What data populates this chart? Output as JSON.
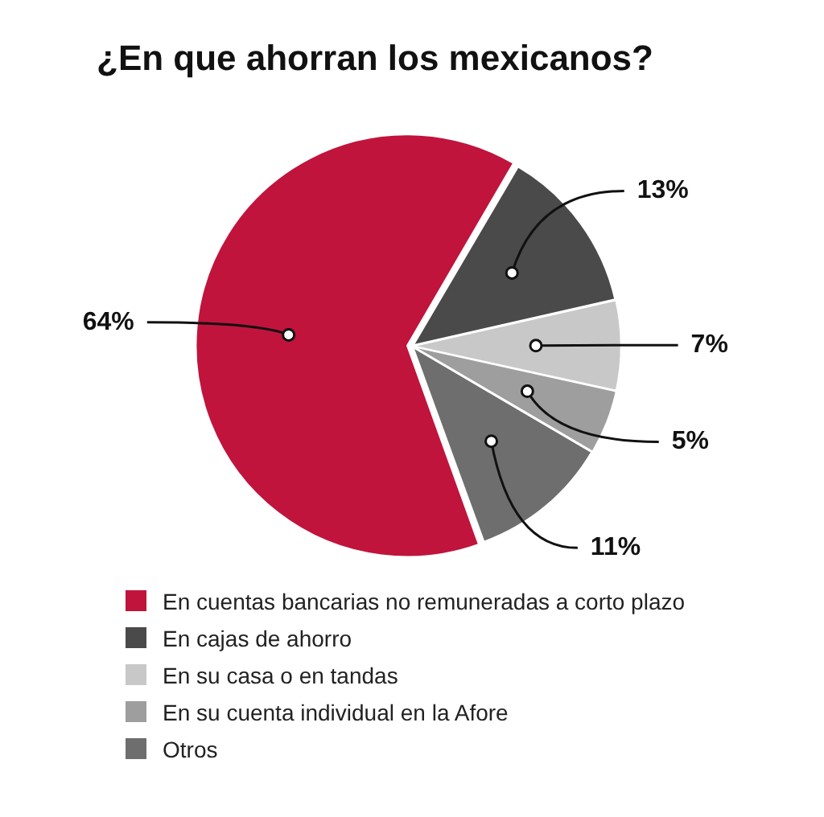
{
  "chart_data": {
    "type": "pie",
    "title": "¿En que ahorran los mexicanos?",
    "categories": [
      "En cuentas bancarias no remuneradas a corto plazo",
      "En cajas de ahorro",
      "En su casa o en tandas",
      "En su cuenta individual en la Afore",
      "Otros"
    ],
    "values": [
      64,
      13,
      7,
      5,
      11
    ],
    "colors": [
      "#c0143c",
      "#4a4a4a",
      "#c8c8c8",
      "#9e9e9e",
      "#6e6e6e"
    ],
    "value_labels": [
      "64%",
      "13%",
      "7%",
      "5%",
      "11%"
    ],
    "legend": "bottom"
  }
}
